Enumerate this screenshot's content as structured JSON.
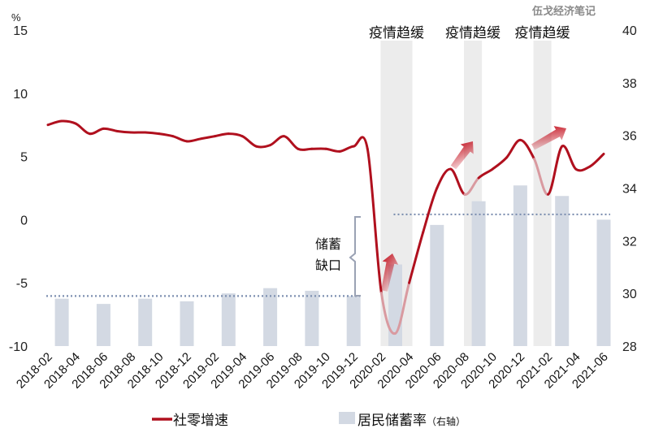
{
  "watermark": "伍戈经济笔记",
  "chart_data": {
    "type": "line+bar",
    "x": [
      "2018-02",
      "2018-03",
      "2018-04",
      "2018-05",
      "2018-06",
      "2018-07",
      "2018-08",
      "2018-09",
      "2018-10",
      "2018-11",
      "2018-12",
      "2019-01",
      "2019-02",
      "2019-03",
      "2019-04",
      "2019-05",
      "2019-06",
      "2019-07",
      "2019-08",
      "2019-09",
      "2019-10",
      "2019-11",
      "2019-12",
      "2020-01",
      "2020-02",
      "2020-03",
      "2020-04",
      "2020-05",
      "2020-06",
      "2020-07",
      "2020-08",
      "2020-09",
      "2020-10",
      "2020-11",
      "2020-12",
      "2021-01",
      "2021-02",
      "2021-03",
      "2021-04",
      "2021-05",
      "2021-06"
    ],
    "xtick_labels": [
      "2018-02",
      "2018-04",
      "2018-06",
      "2018-08",
      "2018-10",
      "2018-12",
      "2019-02",
      "2019-04",
      "2019-06",
      "2019-08",
      "2019-10",
      "2019-12",
      "2020-02",
      "2020-04",
      "2020-06",
      "2020-08",
      "2020-10",
      "2020-12",
      "2021-02",
      "2021-04",
      "2021-06"
    ],
    "left_axis": {
      "unit": "%",
      "ylim": [
        -10,
        15
      ],
      "ticks": [
        "-10",
        "-5",
        "0",
        "5",
        "10",
        "15"
      ]
    },
    "right_axis": {
      "ylim": [
        28,
        40
      ],
      "ticks": [
        "28",
        "30",
        "32",
        "34",
        "36",
        "38",
        "40"
      ]
    },
    "series": [
      {
        "name": "社零增速",
        "kind": "line",
        "axis": "left",
        "color": "#b0101e",
        "values": [
          7.5,
          7.8,
          7.6,
          6.8,
          7.2,
          7.0,
          6.9,
          6.9,
          6.8,
          6.6,
          6.2,
          6.4,
          6.6,
          6.8,
          6.6,
          5.8,
          5.9,
          6.6,
          5.6,
          5.6,
          5.6,
          5.4,
          5.8,
          5.6,
          -5.8,
          -9.0,
          -5.0,
          -1.0,
          2.5,
          4.0,
          2.0,
          3.3,
          4.0,
          4.9,
          6.3,
          4.8,
          2.0,
          5.8,
          4.0,
          4.2,
          5.2
        ]
      },
      {
        "name": "居民储蓄率",
        "name_suffix": "（右轴）",
        "kind": "bar",
        "axis": "right",
        "color": "#d3d9e3",
        "x": [
          "2018-03",
          "2018-06",
          "2018-09",
          "2018-12",
          "2019-03",
          "2019-06",
          "2019-09",
          "2019-12",
          "2020-03",
          "2020-06",
          "2020-09",
          "2020-12",
          "2021-03",
          "2021-06"
        ],
        "values": [
          29.8,
          29.6,
          29.8,
          29.7,
          30.0,
          30.2,
          30.1,
          29.9,
          31.1,
          32.6,
          33.5,
          34.1,
          33.7,
          32.8
        ]
      }
    ],
    "shaded_bands": [
      {
        "start": "2020-02",
        "end": "2020-04",
        "label": "疫情趋缓"
      },
      {
        "start": "2020-08",
        "end": "2020-09",
        "label": "疫情趋缓"
      },
      {
        "start": "2021-01",
        "end": "2021-02",
        "label": "疫情趋缓"
      }
    ],
    "reference_lines": [
      {
        "axis": "right",
        "value": 29.9,
        "from": "2018-02",
        "to": "2019-12",
        "style": "dotted",
        "color": "#7d8fb0"
      },
      {
        "axis": "right",
        "value": 33.0,
        "from": "2020-03",
        "to": "2021-06",
        "style": "dotted",
        "color": "#7d8fb0"
      }
    ],
    "annotations": {
      "gap_label_line1": "储蓄",
      "gap_label_line2": "缺口"
    },
    "legend_placement": "bottom",
    "grid": false
  }
}
